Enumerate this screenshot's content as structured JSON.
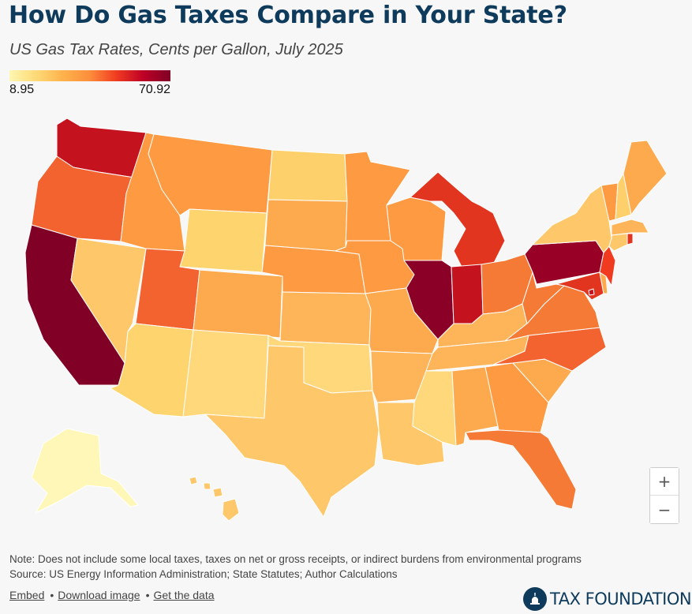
{
  "header": {
    "title": "How Do Gas Taxes Compare in Your State?",
    "subtitle": "US Gas Tax Rates, Cents per Gallon, July 2025"
  },
  "legend": {
    "min": "8.95",
    "max": "70.92",
    "colors": [
      "#fff7b0",
      "#fed976",
      "#feb24c",
      "#fd8d3c",
      "#f03b20",
      "#bd0026",
      "#800026"
    ]
  },
  "map": {
    "states": [
      {
        "id": "WA",
        "color": "#c4121f"
      },
      {
        "id": "OR",
        "color": "#f26330"
      },
      {
        "id": "CA",
        "color": "#800026"
      },
      {
        "id": "NV",
        "color": "#fec86a"
      },
      {
        "id": "ID",
        "color": "#fd9a42"
      },
      {
        "id": "MT",
        "color": "#fd9a42"
      },
      {
        "id": "WY",
        "color": "#fed46f"
      },
      {
        "id": "UT",
        "color": "#f26330"
      },
      {
        "id": "AZ",
        "color": "#fed46f"
      },
      {
        "id": "CO",
        "color": "#fdaa4e"
      },
      {
        "id": "NM",
        "color": "#fed87a"
      },
      {
        "id": "ND",
        "color": "#fed06c"
      },
      {
        "id": "SD",
        "color": "#fdaa4e"
      },
      {
        "id": "NE",
        "color": "#fd9a42"
      },
      {
        "id": "KS",
        "color": "#feb55a"
      },
      {
        "id": "OK",
        "color": "#fed87a"
      },
      {
        "id": "TX",
        "color": "#fec86a"
      },
      {
        "id": "MN",
        "color": "#fd9a42"
      },
      {
        "id": "IA",
        "color": "#fd9a42"
      },
      {
        "id": "MO",
        "color": "#fdaa4e"
      },
      {
        "id": "AR",
        "color": "#feb55a"
      },
      {
        "id": "LA",
        "color": "#fec86a"
      },
      {
        "id": "WI",
        "color": "#fd9a42"
      },
      {
        "id": "IL",
        "color": "#8b0026"
      },
      {
        "id": "MS",
        "color": "#fed87a"
      },
      {
        "id": "MI",
        "color": "#e2351f"
      },
      {
        "id": "IN",
        "color": "#c4121f"
      },
      {
        "id": "OH",
        "color": "#f57a35"
      },
      {
        "id": "KY",
        "color": "#feb55a"
      },
      {
        "id": "TN",
        "color": "#feb55a"
      },
      {
        "id": "AL",
        "color": "#fdaa4e"
      },
      {
        "id": "GA",
        "color": "#fd9a42"
      },
      {
        "id": "FL",
        "color": "#f57a35"
      },
      {
        "id": "SC",
        "color": "#fdaa4e"
      },
      {
        "id": "NC",
        "color": "#f26330"
      },
      {
        "id": "VA",
        "color": "#f57a35"
      },
      {
        "id": "WV",
        "color": "#f57a35"
      },
      {
        "id": "PA",
        "color": "#990026"
      },
      {
        "id": "NY",
        "color": "#fec86a"
      },
      {
        "id": "VT",
        "color": "#fd9a42"
      },
      {
        "id": "NH",
        "color": "#fed06c"
      },
      {
        "id": "ME",
        "color": "#fdaa4e"
      },
      {
        "id": "MA",
        "color": "#feb55a"
      },
      {
        "id": "CT",
        "color": "#fec86a"
      },
      {
        "id": "RI",
        "color": "#e2351f"
      },
      {
        "id": "NJ",
        "color": "#f03b20"
      },
      {
        "id": "DE",
        "color": "#fdaa4e"
      },
      {
        "id": "MD",
        "color": "#e2351f"
      },
      {
        "id": "DC",
        "color": "#c4121f"
      },
      {
        "id": "AK",
        "color": "#fff7b8"
      },
      {
        "id": "HI",
        "color": "#fec86a"
      }
    ]
  },
  "zoom": {
    "in_label": "+",
    "out_label": "−"
  },
  "footer": {
    "note": "Note: Does not include some local taxes, taxes on net or gross receipts, or indirect burdens from environmental programs",
    "source": "Source: US Energy Information Administration; State Statutes; Author Calculations",
    "embed": "Embed",
    "download": "Download image",
    "data": "Get the data",
    "sep": "•",
    "brand": "TAX FOUNDATION",
    "brand_color": "#0e3a5b"
  }
}
